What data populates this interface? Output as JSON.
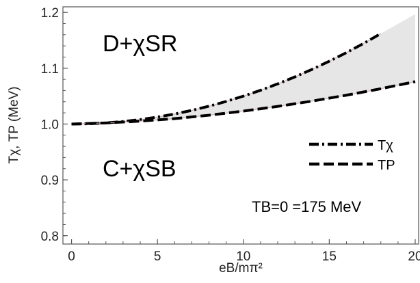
{
  "chart_data": {
    "type": "line",
    "title": "",
    "xlabel": "eB/mπ²",
    "ylabel": "Tχ, TP (MeV)",
    "xlim": [
      -0.5,
      20.2
    ],
    "ylim": [
      0.785,
      1.21
    ],
    "xticks": [
      0,
      5,
      10,
      15,
      20
    ],
    "yticks": [
      0.8,
      0.9,
      1.0,
      1.1,
      1.2
    ],
    "ytick_labels": [
      "0.8",
      "0.9",
      "1.0",
      "1.1",
      "1.2"
    ],
    "grid": false,
    "legend": "right",
    "series": [
      {
        "name": "Tχ",
        "style": "dash-dot",
        "x": [
          0,
          1,
          2,
          3,
          4,
          5,
          6,
          7,
          8,
          9,
          10,
          11,
          12,
          13,
          14,
          15,
          16,
          17,
          18
        ],
        "y": [
          1.0,
          1.0005,
          1.002,
          1.0045,
          1.008,
          1.0125,
          1.018,
          1.0245,
          1.032,
          1.0405,
          1.05,
          1.0605,
          1.072,
          1.0845,
          1.098,
          1.1125,
          1.128,
          1.1445,
          1.162
        ]
      },
      {
        "name": "TP",
        "style": "dashed",
        "x": [
          0,
          2,
          4,
          6,
          8,
          10,
          12,
          14,
          16,
          18,
          20
        ],
        "y": [
          1.0,
          1.002,
          1.0052,
          1.0097,
          1.0158,
          1.0232,
          1.0316,
          1.0411,
          1.0517,
          1.0633,
          1.076
        ]
      }
    ],
    "annotations": {
      "upper_region": "D+χSR",
      "lower_region": "C+χSB",
      "condition": "TB=0 =175 MeV"
    },
    "shading": {
      "between": [
        "Tχ",
        "TP"
      ],
      "color": "#e6e6e6"
    },
    "colors": {
      "line": "#000000",
      "highlight": "#c9a6a6"
    }
  }
}
